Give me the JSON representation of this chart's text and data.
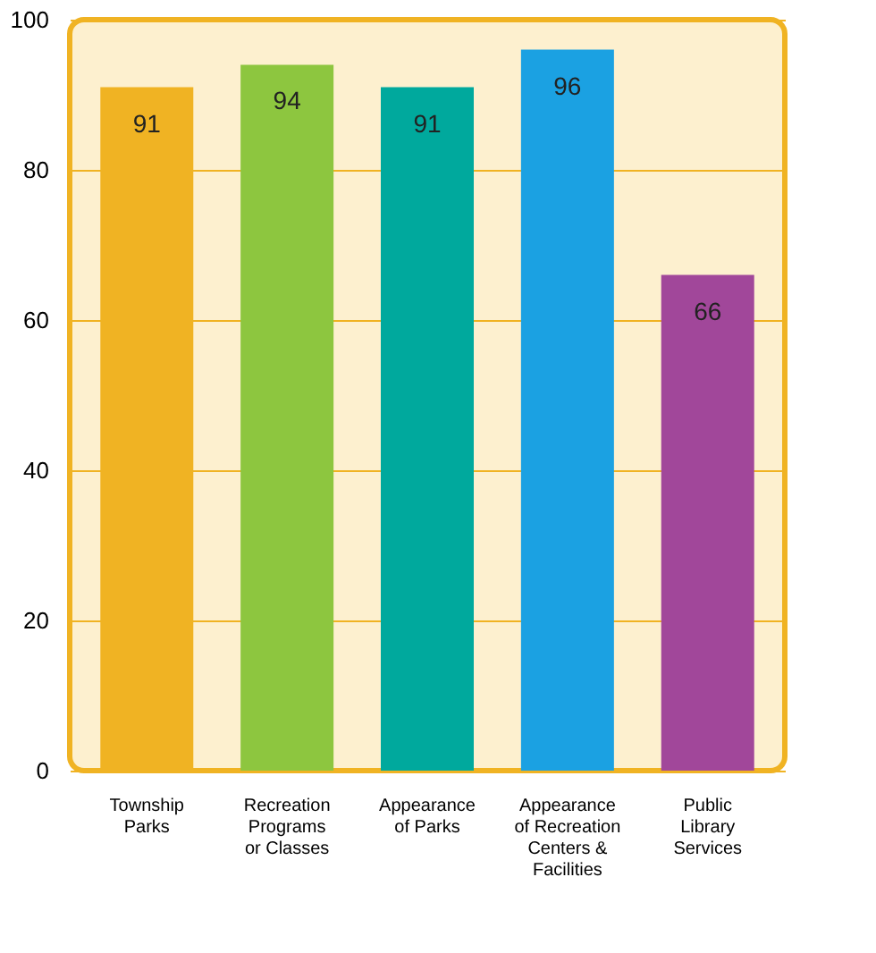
{
  "chart_data": {
    "type": "bar",
    "categories": [
      "Township\nParks",
      "Recreation\nPrograms\nor Classes",
      "Appearance\nof Parks",
      "Appearance\nof Recreation\nCenters &\nFacilities",
      "Public\nLibrary\nServices"
    ],
    "values": [
      91,
      94,
      91,
      96,
      66
    ],
    "colors": [
      "#f0b323",
      "#8dc63f",
      "#00a99d",
      "#1ba1e2",
      "#a1479a"
    ],
    "ylim": [
      0,
      100
    ],
    "yticks": [
      0,
      20,
      40,
      60,
      80,
      100
    ],
    "grid": "y",
    "data_labels": true
  }
}
